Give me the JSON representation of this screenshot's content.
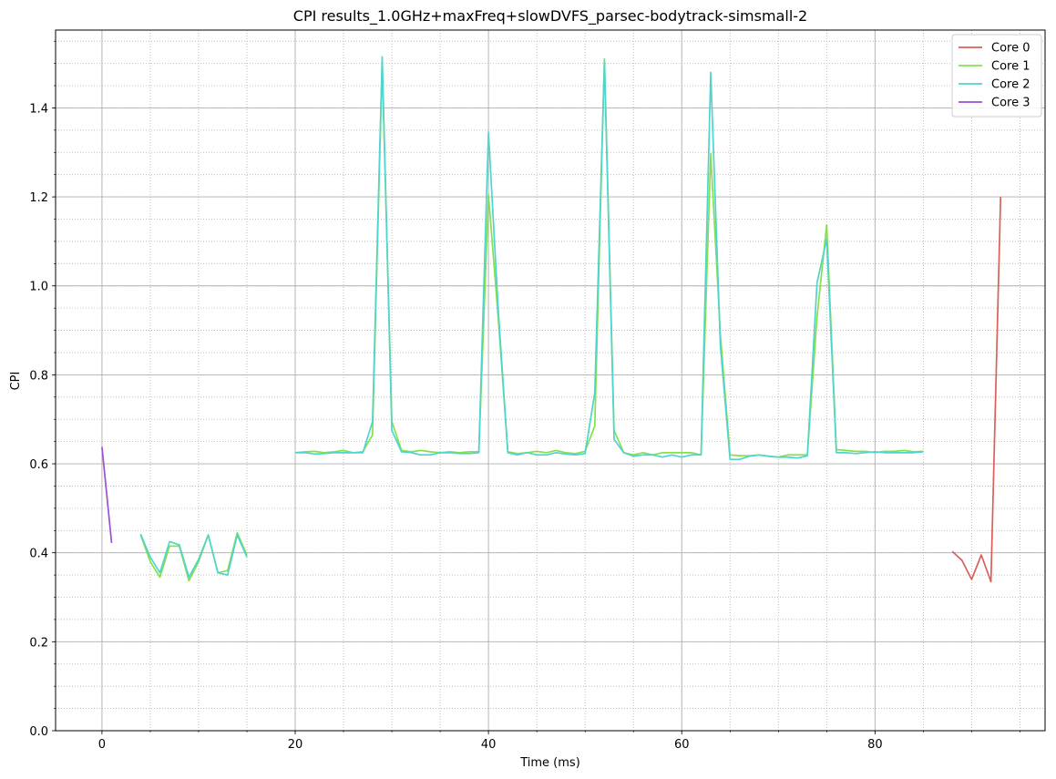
{
  "chart_data": {
    "type": "line",
    "title": "CPI results_1.0GHz+maxFreq+slowDVFS_parsec-bodytrack-simsmall-2",
    "xlabel": "Time (ms)",
    "ylabel": "CPI",
    "xlim": [
      -4.8,
      97.6
    ],
    "ylim": [
      0.0,
      1.575
    ],
    "xticks": [
      0,
      20,
      40,
      60,
      80
    ],
    "yticks": [
      0.0,
      0.2,
      0.4,
      0.6,
      0.8,
      1.0,
      1.2,
      1.4
    ],
    "xtick_labels": [
      "0",
      "20",
      "40",
      "60",
      "80"
    ],
    "ytick_labels": [
      "0.0",
      "0.2",
      "0.4",
      "0.6",
      "0.8",
      "1.0",
      "1.2",
      "1.4"
    ],
    "x_minor_step": 5,
    "y_minor_step": 0.05,
    "grid": {
      "major": "solid",
      "minor": "dotted"
    },
    "legend_position": "top-right",
    "series": [
      {
        "name": "Core 0",
        "color": "#d9605a",
        "segments": [
          [
            [
              88,
              0.403
            ],
            [
              89,
              0.383
            ],
            [
              90,
              0.34
            ],
            [
              91,
              0.395
            ],
            [
              92,
              0.335
            ],
            [
              93,
              1.2
            ]
          ]
        ]
      },
      {
        "name": "Core 1",
        "color": "#86e04d",
        "segments": [
          [
            [
              4,
              0.44
            ],
            [
              5,
              0.38
            ],
            [
              6,
              0.345
            ],
            [
              7,
              0.415
            ],
            [
              8,
              0.415
            ],
            [
              9,
              0.337
            ],
            [
              10,
              0.38
            ],
            [
              11,
              0.44
            ],
            [
              12,
              0.355
            ],
            [
              13,
              0.36
            ],
            [
              14,
              0.445
            ],
            [
              15,
              0.395
            ]
          ],
          [
            [
              20,
              0.625
            ],
            [
              21,
              0.627
            ],
            [
              22,
              0.628
            ],
            [
              23,
              0.625
            ],
            [
              24,
              0.627
            ],
            [
              25,
              0.63
            ],
            [
              26,
              0.625
            ],
            [
              27,
              0.627
            ],
            [
              28,
              0.665
            ],
            [
              29,
              1.5
            ],
            [
              30,
              0.695
            ],
            [
              31,
              0.63
            ],
            [
              32,
              0.627
            ],
            [
              33,
              0.63
            ],
            [
              34,
              0.627
            ],
            [
              35,
              0.625
            ],
            [
              36,
              0.627
            ],
            [
              37,
              0.625
            ],
            [
              38,
              0.627
            ],
            [
              39,
              0.627
            ],
            [
              40,
              1.205
            ],
            [
              41,
              0.93
            ],
            [
              42,
              0.627
            ],
            [
              43,
              0.623
            ],
            [
              44,
              0.625
            ],
            [
              45,
              0.628
            ],
            [
              46,
              0.625
            ],
            [
              47,
              0.63
            ],
            [
              48,
              0.625
            ],
            [
              49,
              0.623
            ],
            [
              50,
              0.628
            ],
            [
              51,
              0.685
            ],
            [
              52,
              1.51
            ],
            [
              53,
              0.675
            ],
            [
              54,
              0.625
            ],
            [
              55,
              0.62
            ],
            [
              56,
              0.625
            ],
            [
              57,
              0.62
            ],
            [
              58,
              0.625
            ],
            [
              59,
              0.625
            ],
            [
              60,
              0.625
            ],
            [
              61,
              0.625
            ],
            [
              62,
              0.62
            ],
            [
              63,
              1.297
            ],
            [
              64,
              0.89
            ],
            [
              65,
              0.62
            ],
            [
              66,
              0.618
            ],
            [
              67,
              0.618
            ],
            [
              68,
              0.62
            ],
            [
              69,
              0.617
            ],
            [
              70,
              0.615
            ],
            [
              71,
              0.62
            ],
            [
              72,
              0.62
            ],
            [
              73,
              0.62
            ],
            [
              74,
              0.93
            ],
            [
              75,
              1.137
            ],
            [
              76,
              0.632
            ],
            [
              77,
              0.63
            ],
            [
              78,
              0.628
            ],
            [
              79,
              0.628
            ],
            [
              80,
              0.625
            ],
            [
              81,
              0.628
            ],
            [
              82,
              0.628
            ],
            [
              83,
              0.63
            ],
            [
              84,
              0.627
            ],
            [
              85,
              0.628
            ]
          ]
        ]
      },
      {
        "name": "Core 2",
        "color": "#4fd4ce",
        "segments": [
          [
            [
              4,
              0.442
            ],
            [
              5,
              0.39
            ],
            [
              6,
              0.355
            ],
            [
              7,
              0.425
            ],
            [
              8,
              0.418
            ],
            [
              9,
              0.345
            ],
            [
              10,
              0.385
            ],
            [
              11,
              0.44
            ],
            [
              12,
              0.355
            ],
            [
              13,
              0.35
            ],
            [
              14,
              0.44
            ],
            [
              15,
              0.39
            ]
          ],
          [
            [
              20,
              0.625
            ],
            [
              21,
              0.625
            ],
            [
              22,
              0.622
            ],
            [
              23,
              0.623
            ],
            [
              24,
              0.625
            ],
            [
              25,
              0.625
            ],
            [
              26,
              0.625
            ],
            [
              27,
              0.625
            ],
            [
              28,
              0.695
            ],
            [
              29,
              1.515
            ],
            [
              30,
              0.675
            ],
            [
              31,
              0.627
            ],
            [
              32,
              0.625
            ],
            [
              33,
              0.62
            ],
            [
              34,
              0.62
            ],
            [
              35,
              0.625
            ],
            [
              36,
              0.625
            ],
            [
              37,
              0.623
            ],
            [
              38,
              0.623
            ],
            [
              39,
              0.625
            ],
            [
              40,
              1.345
            ],
            [
              41,
              0.95
            ],
            [
              42,
              0.625
            ],
            [
              43,
              0.62
            ],
            [
              44,
              0.625
            ],
            [
              45,
              0.62
            ],
            [
              46,
              0.62
            ],
            [
              47,
              0.625
            ],
            [
              48,
              0.622
            ],
            [
              49,
              0.62
            ],
            [
              50,
              0.623
            ],
            [
              51,
              0.76
            ],
            [
              52,
              1.505
            ],
            [
              53,
              0.655
            ],
            [
              54,
              0.625
            ],
            [
              55,
              0.617
            ],
            [
              56,
              0.62
            ],
            [
              57,
              0.62
            ],
            [
              58,
              0.615
            ],
            [
              59,
              0.62
            ],
            [
              60,
              0.615
            ],
            [
              61,
              0.62
            ],
            [
              62,
              0.62
            ],
            [
              63,
              1.48
            ],
            [
              64,
              0.865
            ],
            [
              65,
              0.61
            ],
            [
              66,
              0.61
            ],
            [
              67,
              0.617
            ],
            [
              68,
              0.62
            ],
            [
              69,
              0.617
            ],
            [
              70,
              0.615
            ],
            [
              71,
              0.615
            ],
            [
              72,
              0.613
            ],
            [
              73,
              0.618
            ],
            [
              74,
              1.007
            ],
            [
              75,
              1.105
            ],
            [
              76,
              0.625
            ],
            [
              77,
              0.625
            ],
            [
              78,
              0.623
            ],
            [
              79,
              0.625
            ],
            [
              80,
              0.627
            ],
            [
              81,
              0.625
            ],
            [
              82,
              0.625
            ],
            [
              83,
              0.625
            ],
            [
              84,
              0.625
            ],
            [
              85,
              0.627
            ]
          ]
        ]
      },
      {
        "name": "Core 3",
        "color": "#9b4fd1",
        "segments": [
          [
            [
              0,
              0.638
            ],
            [
              1,
              0.422
            ]
          ]
        ]
      }
    ]
  }
}
